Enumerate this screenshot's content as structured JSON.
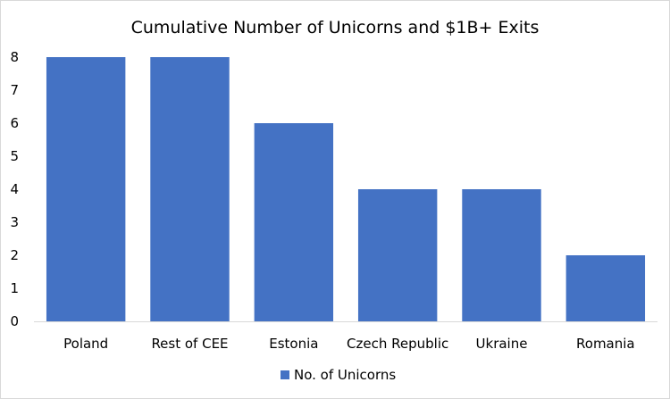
{
  "chart_data": {
    "type": "bar",
    "title": "Cumulative Number of Unicorns and $1B+ Exits",
    "categories": [
      "Poland",
      "Rest of CEE",
      "Estonia",
      "Czech Republic",
      "Ukraine",
      "Romania"
    ],
    "series": [
      {
        "name": "No. of Unicorns",
        "values": [
          8,
          8,
          6,
          4,
          4,
          2
        ],
        "color": "#4472c4"
      }
    ],
    "ylim": [
      0,
      8
    ],
    "yticks": [
      "0",
      "1",
      "2",
      "3",
      "4",
      "5",
      "6",
      "7",
      "8"
    ],
    "grid": false,
    "legend": "bottom"
  }
}
